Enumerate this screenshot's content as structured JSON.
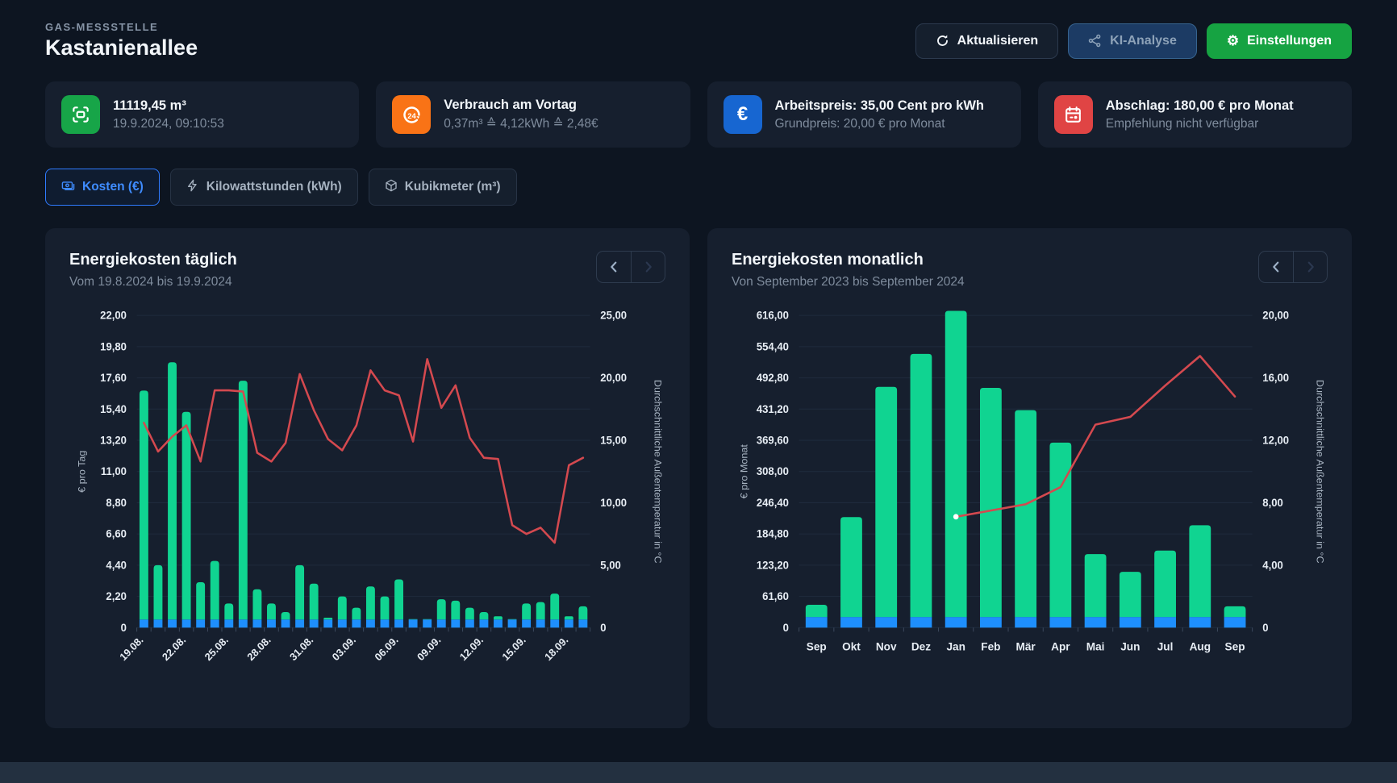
{
  "header": {
    "eyebrow": "GAS-MESSSTELLE",
    "title": "Kastanienallee",
    "buttons": {
      "refresh": "Aktualisieren",
      "ai": "KI-Analyse",
      "settings": "Einstellungen"
    }
  },
  "icons": {
    "gear": "⚙",
    "euro": "€",
    "refresh24_label": "24",
    "refresh": "refresh-icon",
    "ai": "ai-network-icon",
    "meter": "meter-scan-icon",
    "calendar": "calendar-icon",
    "prev": "chevron-left-icon",
    "next": "chevron-right-icon"
  },
  "colors": {
    "page_bg": "#0d1521",
    "card_bg": "#161f2e",
    "bar_green": "#10d491",
    "bar_blue": "#1e8ffd",
    "line_red": "#d4494f",
    "accent_blue": "#3f8cff",
    "button_green": "#16a342",
    "grid": "#1f2b3d"
  },
  "stat_cards": [
    {
      "icon": "meter-scan-icon",
      "color": "#17a548",
      "title": "11119,45 m³",
      "subtitle": "19.9.2024, 09:10:53"
    },
    {
      "icon": "refresh-24h-icon",
      "color": "#f97316",
      "title": "Verbrauch am Vortag",
      "subtitle": "0,37m³ ≙ 4,12kWh ≙ 2,48€"
    },
    {
      "icon": "euro-icon",
      "color": "#1766d1",
      "title": "Arbeitspreis: 35,00 Cent pro kWh",
      "subtitle": "Grundpreis: 20,00 € pro Monat"
    },
    {
      "icon": "calendar-icon",
      "color": "#e04444",
      "title": "Abschlag: 180,00 € pro Monat",
      "subtitle": "Empfehlung nicht verfügbar"
    }
  ],
  "tabs": [
    {
      "label": "Kosten (€)",
      "icon": "banknote-icon",
      "active": true
    },
    {
      "label": "Kilowattstunden (kWh)",
      "icon": "bolt-icon",
      "active": false
    },
    {
      "label": "Kubikmeter (m³)",
      "icon": "cube-icon",
      "active": false
    }
  ],
  "chart_data": [
    {
      "type": "bar",
      "title": "Energiekosten täglich",
      "subtitle": "Vom 19.8.2024 bis 19.9.2024",
      "ylabel_left": "€ pro Tag",
      "ylabel_right": "Durchschnittliche Außentemperatur in °C",
      "ylim_left": [
        0,
        22
      ],
      "ylim_right": [
        0,
        25
      ],
      "y_ticks_left": [
        "0",
        "2,20",
        "4,40",
        "6,60",
        "8,80",
        "11,00",
        "13,20",
        "15,40",
        "17,60",
        "19,80",
        "22,00"
      ],
      "y_ticks_right": [
        "0",
        "5,00",
        "10,00",
        "15,00",
        "20,00",
        "25,00"
      ],
      "categories": [
        "19.08.",
        "20.08.",
        "21.08.",
        "22.08.",
        "23.08.",
        "24.08.",
        "25.08.",
        "26.08.",
        "27.08.",
        "28.08.",
        "29.08.",
        "30.08.",
        "31.08.",
        "01.09.",
        "02.09.",
        "03.09.",
        "04.09.",
        "05.09.",
        "06.09.",
        "07.09.",
        "08.09.",
        "09.09.",
        "10.09.",
        "11.09.",
        "12.09.",
        "13.09.",
        "14.09.",
        "15.09.",
        "16.09.",
        "17.09.",
        "18.09.",
        "19.09."
      ],
      "label_every": 3,
      "x_rotate": true,
      "legend": "none",
      "grid": true,
      "bars": {
        "stacked": true,
        "base_value": 0.57,
        "base_color": "#1e8ffd",
        "top_color": "#10d491",
        "totals": [
          16.7,
          4.4,
          18.7,
          15.2,
          3.2,
          4.7,
          1.7,
          17.4,
          2.7,
          1.7,
          1.1,
          4.4,
          3.1,
          0.7,
          2.2,
          1.4,
          2.9,
          2.2,
          3.4,
          0.6,
          0.6,
          2.0,
          1.9,
          1.4,
          1.1,
          0.8,
          0.6,
          1.7,
          1.8,
          2.4,
          0.8,
          1.5
        ]
      },
      "line": {
        "name": "Durchschnittliche Außentemperatur in °C",
        "axis": "right",
        "color": "#d4494f",
        "values": [
          16.4,
          14.1,
          15.3,
          16.2,
          13.3,
          19.0,
          19.0,
          18.9,
          14.0,
          13.3,
          14.8,
          20.3,
          17.4,
          15.1,
          14.2,
          16.2,
          20.6,
          19.0,
          18.6,
          14.9,
          21.5,
          17.6,
          19.4,
          15.2,
          13.6,
          13.5,
          8.2,
          7.5,
          8.0,
          6.8,
          13.0,
          13.6
        ],
        "dot_index": null
      }
    },
    {
      "type": "bar",
      "title": "Energiekosten monatlich",
      "subtitle": "Von September 2023 bis September 2024",
      "ylabel_left": "€ pro Monat",
      "ylabel_right": "Durchschnittliche Außentemperatur in °C",
      "ylim_left": [
        0,
        616
      ],
      "ylim_right": [
        0,
        20
      ],
      "y_ticks_left": [
        "0",
        "61,60",
        "123,20",
        "184,80",
        "246,40",
        "308,00",
        "369,60",
        "431,20",
        "492,80",
        "554,40",
        "616,00"
      ],
      "y_ticks_right": [
        "0",
        "4,00",
        "8,00",
        "12,00",
        "16,00",
        "20,00"
      ],
      "categories": [
        "Sep",
        "Okt",
        "Nov",
        "Dez",
        "Jan",
        "Feb",
        "Mär",
        "Apr",
        "Mai",
        "Jun",
        "Jul",
        "Aug",
        "Sep"
      ],
      "label_every": 1,
      "x_rotate": false,
      "legend": "none",
      "grid": true,
      "bars": {
        "stacked": true,
        "base_value": 21,
        "base_color": "#1e8ffd",
        "top_color": "#10d491",
        "totals": [
          45,
          218,
          475,
          540,
          625,
          473,
          429,
          365,
          145,
          110,
          152,
          202,
          42
        ]
      },
      "line": {
        "name": "Durchschnittliche Außentemperatur in °C",
        "axis": "right",
        "color": "#d4494f",
        "values": [
          null,
          null,
          null,
          null,
          7.1,
          7.5,
          7.9,
          9.0,
          13.0,
          13.5,
          15.5,
          17.4,
          14.8
        ],
        "dot_index": 4
      }
    }
  ]
}
